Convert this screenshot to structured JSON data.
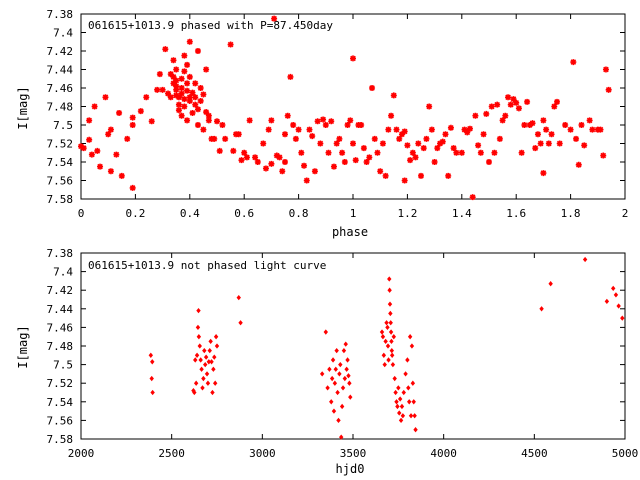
{
  "chart_data": [
    {
      "type": "scatter",
      "title": "061615+1013.9 phased with P=87.450day",
      "xlabel": "phase",
      "ylabel": "I[mag]",
      "xlim": [
        0,
        2
      ],
      "ylim": [
        7.38,
        7.58
      ],
      "y_inverted": true,
      "grid": false,
      "x_ticks": [
        "0",
        "0.2",
        "0.4",
        "0.6",
        "0.8",
        "1",
        "1.2",
        "1.4",
        "1.6",
        "1.8",
        "2"
      ],
      "y_ticks": [
        "7.38",
        "7.4",
        "7.42",
        "7.44",
        "7.46",
        "7.48",
        "7.5",
        "7.52",
        "7.54",
        "7.56",
        "7.58"
      ],
      "marker": "star",
      "color": "#ff0000",
      "points": [
        [
          0.0,
          7.523
        ],
        [
          0.01,
          7.525
        ],
        [
          0.03,
          7.516
        ],
        [
          0.03,
          7.495
        ],
        [
          0.04,
          7.532
        ],
        [
          0.06,
          7.528
        ],
        [
          0.05,
          7.48
        ],
        [
          0.07,
          7.545
        ],
        [
          0.09,
          7.47
        ],
        [
          0.1,
          7.51
        ],
        [
          0.11,
          7.505
        ],
        [
          0.11,
          7.55
        ],
        [
          0.13,
          7.532
        ],
        [
          0.14,
          7.487
        ],
        [
          0.15,
          7.555
        ],
        [
          0.17,
          7.515
        ],
        [
          0.19,
          7.492
        ],
        [
          0.19,
          7.5
        ],
        [
          0.19,
          7.568
        ],
        [
          0.22,
          7.485
        ],
        [
          0.24,
          7.47
        ],
        [
          0.26,
          7.496
        ],
        [
          0.28,
          7.462
        ],
        [
          0.29,
          7.445
        ],
        [
          0.3,
          7.462
        ],
        [
          0.31,
          7.418
        ],
        [
          0.32,
          7.466
        ],
        [
          0.33,
          7.445
        ],
        [
          0.33,
          7.47
        ],
        [
          0.34,
          7.43
        ],
        [
          0.34,
          7.448
        ],
        [
          0.34,
          7.455
        ],
        [
          0.35,
          7.44
        ],
        [
          0.35,
          7.452
        ],
        [
          0.35,
          7.458
        ],
        [
          0.35,
          7.462
        ],
        [
          0.35,
          7.468
        ],
        [
          0.36,
          7.47
        ],
        [
          0.36,
          7.478
        ],
        [
          0.36,
          7.484
        ],
        [
          0.37,
          7.45
        ],
        [
          0.37,
          7.46
        ],
        [
          0.37,
          7.466
        ],
        [
          0.37,
          7.49
        ],
        [
          0.38,
          7.442
        ],
        [
          0.38,
          7.472
        ],
        [
          0.38,
          7.48
        ],
        [
          0.38,
          7.425
        ],
        [
          0.39,
          7.455
        ],
        [
          0.39,
          7.463
        ],
        [
          0.39,
          7.435
        ],
        [
          0.39,
          7.495
        ],
        [
          0.4,
          7.41
        ],
        [
          0.4,
          7.448
        ],
        [
          0.4,
          7.47
        ],
        [
          0.4,
          7.474
        ],
        [
          0.41,
          7.465
        ],
        [
          0.41,
          7.487
        ],
        [
          0.42,
          7.455
        ],
        [
          0.42,
          7.47
        ],
        [
          0.42,
          7.478
        ],
        [
          0.43,
          7.42
        ],
        [
          0.43,
          7.483
        ],
        [
          0.43,
          7.5
        ],
        [
          0.44,
          7.46
        ],
        [
          0.44,
          7.474
        ],
        [
          0.45,
          7.467
        ],
        [
          0.45,
          7.505
        ],
        [
          0.46,
          7.486
        ],
        [
          0.46,
          7.44
        ],
        [
          0.47,
          7.495
        ],
        [
          0.47,
          7.49
        ],
        [
          0.48,
          7.515
        ],
        [
          0.49,
          7.515
        ],
        [
          0.5,
          7.496
        ],
        [
          0.51,
          7.528
        ],
        [
          0.52,
          7.5
        ],
        [
          0.53,
          7.515
        ],
        [
          0.55,
          7.413
        ],
        [
          0.56,
          7.528
        ],
        [
          0.57,
          7.51
        ],
        [
          0.58,
          7.51
        ],
        [
          0.59,
          7.538
        ],
        [
          0.6,
          7.53
        ],
        [
          0.61,
          7.535
        ],
        [
          0.62,
          7.495
        ],
        [
          0.64,
          7.535
        ],
        [
          0.65,
          7.54
        ],
        [
          0.67,
          7.52
        ],
        [
          0.68,
          7.547
        ],
        [
          0.69,
          7.505
        ],
        [
          0.7,
          7.495
        ],
        [
          0.7,
          7.542
        ],
        [
          0.71,
          7.385
        ],
        [
          0.72,
          7.533
        ],
        [
          0.73,
          7.535
        ],
        [
          0.74,
          7.55
        ],
        [
          0.75,
          7.54
        ],
        [
          0.75,
          7.51
        ],
        [
          0.76,
          7.49
        ],
        [
          0.77,
          7.448
        ],
        [
          0.78,
          7.5
        ],
        [
          0.79,
          7.515
        ],
        [
          0.8,
          7.505
        ],
        [
          0.81,
          7.53
        ],
        [
          0.82,
          7.544
        ],
        [
          0.83,
          7.56
        ],
        [
          0.84,
          7.505
        ],
        [
          0.85,
          7.512
        ],
        [
          0.86,
          7.55
        ],
        [
          0.87,
          7.496
        ],
        [
          0.88,
          7.52
        ],
        [
          0.89,
          7.494
        ],
        [
          0.9,
          7.5
        ],
        [
          0.91,
          7.53
        ],
        [
          0.92,
          7.496
        ],
        [
          0.93,
          7.545
        ],
        [
          0.94,
          7.52
        ],
        [
          0.95,
          7.515
        ],
        [
          0.96,
          7.53
        ],
        [
          0.97,
          7.54
        ],
        [
          0.98,
          7.5
        ],
        [
          0.99,
          7.495
        ],
        [
          1.0,
          7.428
        ],
        [
          1.0,
          7.52
        ],
        [
          1.01,
          7.538
        ],
        [
          1.02,
          7.5
        ],
        [
          1.03,
          7.5
        ],
        [
          1.04,
          7.525
        ],
        [
          1.05,
          7.54
        ],
        [
          1.06,
          7.535
        ],
        [
          1.07,
          7.46
        ],
        [
          1.08,
          7.515
        ],
        [
          1.09,
          7.53
        ],
        [
          1.1,
          7.55
        ],
        [
          1.11,
          7.52
        ],
        [
          1.12,
          7.555
        ],
        [
          1.13,
          7.505
        ],
        [
          1.14,
          7.49
        ],
        [
          1.15,
          7.468
        ],
        [
          1.16,
          7.505
        ],
        [
          1.17,
          7.515
        ],
        [
          1.18,
          7.51
        ],
        [
          1.19,
          7.56
        ],
        [
          1.19,
          7.507
        ],
        [
          1.2,
          7.522
        ],
        [
          1.21,
          7.538
        ],
        [
          1.22,
          7.53
        ],
        [
          1.23,
          7.535
        ],
        [
          1.24,
          7.52
        ],
        [
          1.25,
          7.555
        ],
        [
          1.26,
          7.525
        ],
        [
          1.27,
          7.515
        ],
        [
          1.28,
          7.48
        ],
        [
          1.29,
          7.505
        ],
        [
          1.3,
          7.54
        ],
        [
          1.31,
          7.525
        ],
        [
          1.32,
          7.52
        ],
        [
          1.33,
          7.518
        ],
        [
          1.34,
          7.51
        ],
        [
          1.35,
          7.555
        ],
        [
          1.36,
          7.503
        ],
        [
          1.37,
          7.525
        ],
        [
          1.38,
          7.53
        ],
        [
          1.4,
          7.53
        ],
        [
          1.41,
          7.505
        ],
        [
          1.42,
          7.508
        ],
        [
          1.43,
          7.504
        ],
        [
          1.44,
          7.578
        ],
        [
          1.45,
          7.49
        ],
        [
          1.46,
          7.522
        ],
        [
          1.47,
          7.53
        ],
        [
          1.48,
          7.51
        ],
        [
          1.49,
          7.488
        ],
        [
          1.5,
          7.54
        ],
        [
          1.51,
          7.48
        ],
        [
          1.52,
          7.53
        ],
        [
          1.53,
          7.478
        ],
        [
          1.54,
          7.515
        ],
        [
          1.55,
          7.495
        ],
        [
          1.56,
          7.49
        ],
        [
          1.57,
          7.47
        ],
        [
          1.58,
          7.478
        ],
        [
          1.59,
          7.472
        ],
        [
          1.6,
          7.476
        ],
        [
          1.61,
          7.482
        ],
        [
          1.62,
          7.53
        ],
        [
          1.63,
          7.5
        ],
        [
          1.64,
          7.475
        ],
        [
          1.65,
          7.5
        ],
        [
          1.66,
          7.498
        ],
        [
          1.67,
          7.525
        ],
        [
          1.68,
          7.51
        ],
        [
          1.69,
          7.52
        ],
        [
          1.7,
          7.495
        ],
        [
          1.7,
          7.552
        ],
        [
          1.71,
          7.505
        ],
        [
          1.72,
          7.52
        ],
        [
          1.73,
          7.51
        ],
        [
          1.74,
          7.48
        ],
        [
          1.75,
          7.475
        ],
        [
          1.76,
          7.52
        ],
        [
          1.78,
          7.5
        ],
        [
          1.8,
          7.505
        ],
        [
          1.81,
          7.432
        ],
        [
          1.82,
          7.515
        ],
        [
          1.83,
          7.543
        ],
        [
          1.84,
          7.5
        ],
        [
          1.85,
          7.522
        ],
        [
          1.87,
          7.495
        ],
        [
          1.88,
          7.505
        ],
        [
          1.9,
          7.505
        ],
        [
          1.91,
          7.505
        ],
        [
          1.92,
          7.533
        ],
        [
          1.93,
          7.44
        ],
        [
          1.94,
          7.462
        ]
      ]
    },
    {
      "type": "scatter",
      "title": "061615+1013.9 not phased light curve",
      "xlabel": "hjd0",
      "ylabel": "I[mag]",
      "xlim": [
        2000,
        5000
      ],
      "ylim": [
        7.38,
        7.58
      ],
      "y_inverted": true,
      "grid": false,
      "x_ticks": [
        "2000",
        "2500",
        "3000",
        "3500",
        "4000",
        "4500",
        "5000"
      ],
      "y_ticks": [
        "7.38",
        "7.4",
        "7.42",
        "7.44",
        "7.46",
        "7.48",
        "7.5",
        "7.52",
        "7.54",
        "7.56",
        "7.58"
      ],
      "marker": "diamond",
      "color": "#ff0000",
      "points": [
        [
          2385,
          7.49
        ],
        [
          2390,
          7.515
        ],
        [
          2393,
          7.497
        ],
        [
          2395,
          7.53
        ],
        [
          2620,
          7.528
        ],
        [
          2625,
          7.53
        ],
        [
          2630,
          7.495
        ],
        [
          2635,
          7.52
        ],
        [
          2640,
          7.49
        ],
        [
          2645,
          7.46
        ],
        [
          2648,
          7.442
        ],
        [
          2650,
          7.47
        ],
        [
          2655,
          7.48
        ],
        [
          2660,
          7.495
        ],
        [
          2665,
          7.505
        ],
        [
          2670,
          7.525
        ],
        [
          2675,
          7.515
        ],
        [
          2680,
          7.485
        ],
        [
          2685,
          7.5
        ],
        [
          2690,
          7.492
        ],
        [
          2695,
          7.51
        ],
        [
          2700,
          7.52
        ],
        [
          2705,
          7.497
        ],
        [
          2710,
          7.485
        ],
        [
          2715,
          7.475
        ],
        [
          2720,
          7.497
        ],
        [
          2725,
          7.53
        ],
        [
          2730,
          7.505
        ],
        [
          2735,
          7.492
        ],
        [
          2740,
          7.52
        ],
        [
          2745,
          7.47
        ],
        [
          2750,
          7.48
        ],
        [
          2870,
          7.428
        ],
        [
          2880,
          7.455
        ],
        [
          3330,
          7.51
        ],
        [
          3350,
          7.465
        ],
        [
          3360,
          7.525
        ],
        [
          3370,
          7.505
        ],
        [
          3380,
          7.54
        ],
        [
          3385,
          7.515
        ],
        [
          3390,
          7.495
        ],
        [
          3395,
          7.55
        ],
        [
          3400,
          7.52
        ],
        [
          3405,
          7.505
        ],
        [
          3410,
          7.485
        ],
        [
          3415,
          7.53
        ],
        [
          3420,
          7.56
        ],
        [
          3425,
          7.51
        ],
        [
          3430,
          7.5
        ],
        [
          3435,
          7.578
        ],
        [
          3440,
          7.545
        ],
        [
          3445,
          7.525
        ],
        [
          3450,
          7.485
        ],
        [
          3455,
          7.515
        ],
        [
          3460,
          7.478
        ],
        [
          3465,
          7.505
        ],
        [
          3470,
          7.495
        ],
        [
          3475,
          7.512
        ],
        [
          3480,
          7.52
        ],
        [
          3485,
          7.535
        ],
        [
          3660,
          7.465
        ],
        [
          3665,
          7.47
        ],
        [
          3670,
          7.49
        ],
        [
          3675,
          7.5
        ],
        [
          3680,
          7.475
        ],
        [
          3685,
          7.455
        ],
        [
          3690,
          7.46
        ],
        [
          3693,
          7.48
        ],
        [
          3696,
          7.495
        ],
        [
          3700,
          7.408
        ],
        [
          3702,
          7.42
        ],
        [
          3704,
          7.435
        ],
        [
          3706,
          7.445
        ],
        [
          3708,
          7.455
        ],
        [
          3710,
          7.465
        ],
        [
          3712,
          7.475
        ],
        [
          3714,
          7.485
        ],
        [
          3716,
          7.49
        ],
        [
          3720,
          7.5
        ],
        [
          3725,
          7.47
        ],
        [
          3730,
          7.515
        ],
        [
          3735,
          7.53
        ],
        [
          3740,
          7.54
        ],
        [
          3745,
          7.545
        ],
        [
          3750,
          7.525
        ],
        [
          3755,
          7.552
        ],
        [
          3760,
          7.537
        ],
        [
          3765,
          7.56
        ],
        [
          3770,
          7.545
        ],
        [
          3775,
          7.555
        ],
        [
          3780,
          7.53
        ],
        [
          3790,
          7.51
        ],
        [
          3800,
          7.495
        ],
        [
          3805,
          7.525
        ],
        [
          3810,
          7.54
        ],
        [
          3815,
          7.47
        ],
        [
          3820,
          7.555
        ],
        [
          3825,
          7.48
        ],
        [
          3830,
          7.52
        ],
        [
          3835,
          7.54
        ],
        [
          3840,
          7.555
        ],
        [
          3845,
          7.57
        ],
        [
          4540,
          7.44
        ],
        [
          4590,
          7.413
        ],
        [
          4780,
          7.387
        ],
        [
          4900,
          7.432
        ],
        [
          4935,
          7.418
        ],
        [
          4950,
          7.425
        ],
        [
          4965,
          7.437
        ],
        [
          4985,
          7.45
        ]
      ]
    }
  ]
}
